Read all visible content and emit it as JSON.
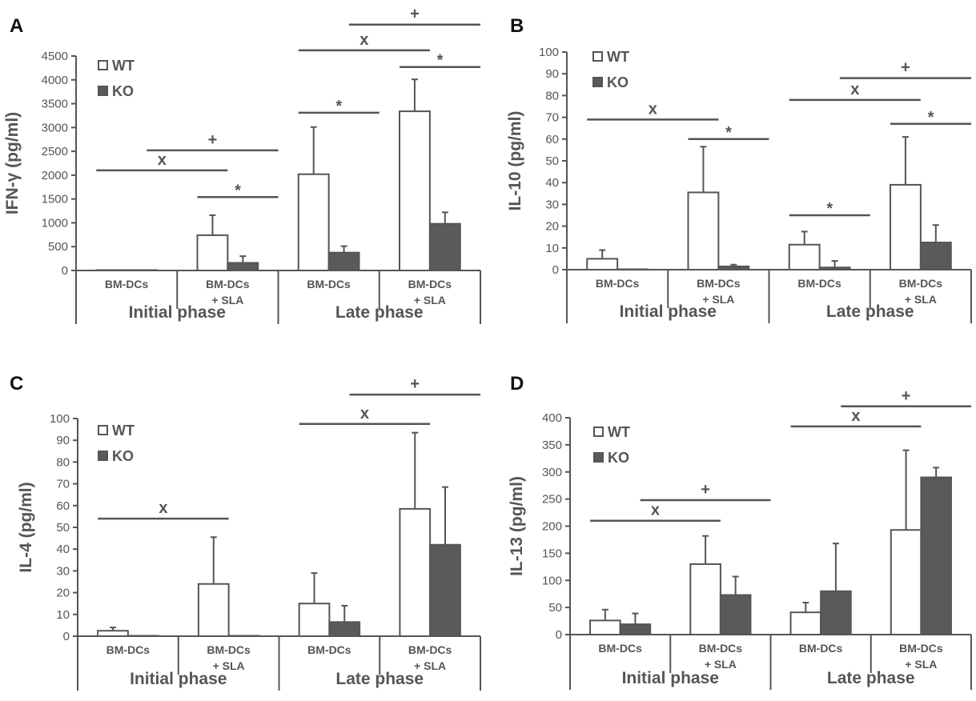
{
  "colors": {
    "wt_fill": "#ffffff",
    "ko_fill": "#5a5a5a",
    "stroke": "#555555",
    "text": "#555555",
    "letter": "#111111"
  },
  "chart_data": [
    {
      "panel": "A",
      "type": "bar",
      "ylabel": "IFN-γ (pg/ml)",
      "ylim": [
        0,
        4500
      ],
      "yticks": [
        0,
        500,
        1000,
        1500,
        2000,
        2500,
        3000,
        3500,
        4000,
        4500
      ],
      "categories": [
        {
          "line1": "BM-DCs",
          "line2": ""
        },
        {
          "line1": "BM-DCs",
          "line2": "+ SLA"
        },
        {
          "line1": "BM-DCs",
          "line2": ""
        },
        {
          "line1": "BM-DCs",
          "line2": "+ SLA"
        }
      ],
      "groups": [
        "Initial phase",
        "Late phase"
      ],
      "legend": [
        "WT",
        "KO"
      ],
      "series": [
        {
          "name": "WT",
          "values": [
            5,
            740,
            2020,
            3340
          ],
          "errors": [
            0,
            420,
            990,
            670
          ]
        },
        {
          "name": "KO",
          "values": [
            5,
            160,
            375,
            980
          ],
          "errors": [
            0,
            140,
            135,
            240
          ]
        }
      ],
      "annotations": [
        {
          "text": "x",
          "from": 0,
          "to": 1,
          "y": 2100
        },
        {
          "text": "+",
          "from": 0.5,
          "to": 1.5,
          "y": 2520
        },
        {
          "text": "*",
          "from": 1,
          "to": 1.5,
          "y": 1540
        },
        {
          "text": "*",
          "from": 2,
          "to": 2.5,
          "y": 3310
        },
        {
          "text": "x",
          "from": 2,
          "to": 3,
          "y": 4620
        },
        {
          "text": "+",
          "from": 2.5,
          "to": 3.5,
          "y": 5160
        },
        {
          "text": "*",
          "from": 3,
          "to": 3.5,
          "y": 4270
        }
      ]
    },
    {
      "panel": "B",
      "type": "bar",
      "ylabel": "IL-10 (pg/ml)",
      "ylim": [
        0,
        100
      ],
      "yticks": [
        0,
        10,
        20,
        30,
        40,
        50,
        60,
        70,
        80,
        90,
        100
      ],
      "categories": [
        {
          "line1": "BM-DCs",
          "line2": ""
        },
        {
          "line1": "BM-DCs",
          "line2": "+ SLA"
        },
        {
          "line1": "BM-DCs",
          "line2": ""
        },
        {
          "line1": "BM-DCs",
          "line2": "+ SLA"
        }
      ],
      "groups": [
        "Initial phase",
        "Late phase"
      ],
      "legend": [
        "WT",
        "KO"
      ],
      "series": [
        {
          "name": "WT",
          "values": [
            5,
            35.5,
            11.5,
            39
          ],
          "errors": [
            4,
            21,
            6,
            22
          ]
        },
        {
          "name": "KO",
          "values": [
            0,
            1.5,
            1,
            12.5
          ],
          "errors": [
            0,
            0.8,
            3,
            8
          ]
        }
      ],
      "annotations": [
        {
          "text": "x",
          "from": 0,
          "to": 1,
          "y": 69
        },
        {
          "text": "*",
          "from": 1,
          "to": 1.5,
          "y": 60
        },
        {
          "text": "*",
          "from": 2,
          "to": 2.5,
          "y": 25
        },
        {
          "text": "x",
          "from": 2,
          "to": 3,
          "y": 78
        },
        {
          "text": "+",
          "from": 2.5,
          "to": 3.5,
          "y": 88
        },
        {
          "text": "*",
          "from": 3,
          "to": 3.5,
          "y": 67
        }
      ]
    },
    {
      "panel": "C",
      "type": "bar",
      "ylabel": "IL-4 (pg/ml)",
      "ylim": [
        0,
        100
      ],
      "yticks": [
        0,
        10,
        20,
        30,
        40,
        50,
        60,
        70,
        80,
        90,
        100
      ],
      "categories": [
        {
          "line1": "BM-DCs",
          "line2": ""
        },
        {
          "line1": "BM-DCs",
          "line2": "+ SLA"
        },
        {
          "line1": "BM-DCs",
          "line2": ""
        },
        {
          "line1": "BM-DCs",
          "line2": "+ SLA"
        }
      ],
      "groups": [
        "Initial phase",
        "Late phase"
      ],
      "legend": [
        "WT",
        "KO"
      ],
      "series": [
        {
          "name": "WT",
          "values": [
            2.5,
            24,
            15,
            58.5
          ],
          "errors": [
            1.5,
            21.5,
            14,
            35
          ]
        },
        {
          "name": "KO",
          "values": [
            0,
            0,
            6.5,
            42
          ],
          "errors": [
            0,
            0,
            7.5,
            26.5
          ]
        }
      ],
      "annotations": [
        {
          "text": "x",
          "from": 0,
          "to": 1,
          "y": 54
        },
        {
          "text": "x",
          "from": 2,
          "to": 3,
          "y": 97.5
        },
        {
          "text": "+",
          "from": 2.5,
          "to": 3.5,
          "y": 111
        }
      ]
    },
    {
      "panel": "D",
      "type": "bar",
      "ylabel": "IL-13 (pg/ml)",
      "ylim": [
        0,
        400
      ],
      "yticks": [
        0,
        50,
        100,
        150,
        200,
        250,
        300,
        350,
        400
      ],
      "categories": [
        {
          "line1": "BM-DCs",
          "line2": ""
        },
        {
          "line1": "BM-DCs",
          "line2": "+ SLA"
        },
        {
          "line1": "BM-DCs",
          "line2": ""
        },
        {
          "line1": "BM-DCs",
          "line2": "+ SLA"
        }
      ],
      "groups": [
        "Initial phase",
        "Late phase"
      ],
      "legend": [
        "WT",
        "KO"
      ],
      "series": [
        {
          "name": "WT",
          "values": [
            26,
            130,
            41,
            193
          ],
          "errors": [
            20,
            52,
            18,
            147
          ]
        },
        {
          "name": "KO",
          "values": [
            19,
            73,
            80,
            290
          ],
          "errors": [
            20,
            34,
            88,
            18
          ]
        }
      ],
      "annotations": [
        {
          "text": "x",
          "from": 0,
          "to": 1,
          "y": 210
        },
        {
          "text": "+",
          "from": 0.5,
          "to": 1.5,
          "y": 248
        },
        {
          "text": "x",
          "from": 2,
          "to": 3,
          "y": 384
        },
        {
          "text": "+",
          "from": 2.5,
          "to": 3.5,
          "y": 421
        }
      ]
    }
  ]
}
